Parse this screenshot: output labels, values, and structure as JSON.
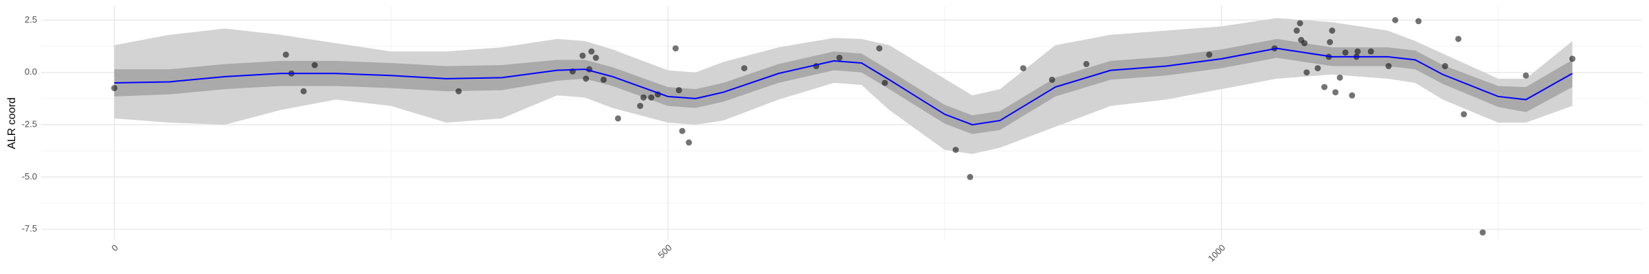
{
  "chart_data": {
    "type": "smooth",
    "y_label": "ALR coord",
    "xlim": [
      -66,
      1380
    ],
    "ylim": [
      -8,
      3.2
    ],
    "xticks": [
      0,
      500,
      1000
    ],
    "yticks": [
      2.5,
      {
        "value": 0,
        "label": "0.0"
      },
      -2.5,
      {
        "value": -5,
        "label": "-5.0"
      },
      -7.5
    ],
    "x_minor_ticks": [
      250,
      750,
      1250
    ],
    "y_minor_ticks": [
      -6.25,
      -3.75,
      -1.25,
      1.25
    ],
    "grid": true,
    "points": {
      "color": "#000000",
      "x": [
        0,
        155,
        160,
        171,
        181,
        311,
        414,
        423,
        426,
        429,
        431,
        435,
        442,
        455,
        475,
        478,
        485,
        491,
        507,
        510,
        513,
        519,
        569,
        634,
        655,
        691,
        696,
        760,
        773,
        821,
        847,
        878,
        989,
        1048,
        1068,
        1071,
        1072,
        1075,
        1077,
        1087,
        1093,
        1097,
        1098,
        1100,
        1103,
        1107,
        1112,
        1118,
        1122,
        1123,
        1135,
        1151,
        1157,
        1178,
        1202,
        1214,
        1219,
        1236,
        1275,
        1317
      ],
      "y": [
        -0.75,
        0.85,
        -0.05,
        -0.9,
        0.35,
        -0.9,
        0.05,
        0.8,
        -0.3,
        0.15,
        1.0,
        0.7,
        -0.35,
        -2.2,
        -1.6,
        -1.2,
        -1.2,
        -1.05,
        1.15,
        -0.85,
        -2.8,
        -3.35,
        0.2,
        0.3,
        0.7,
        1.15,
        -0.5,
        -3.7,
        -5.0,
        0.2,
        -0.35,
        0.4,
        0.85,
        1.15,
        2.0,
        2.35,
        1.55,
        1.4,
        0.0,
        0.2,
        -0.7,
        0.75,
        1.45,
        2.0,
        -0.95,
        -0.25,
        0.95,
        -1.1,
        0.75,
        1.0,
        1.0,
        0.3,
        2.5,
        2.45,
        0.3,
        1.6,
        -2.0,
        -7.65,
        -0.15,
        0.65
      ]
    },
    "smooth": {
      "color": "#0000ff",
      "x": [
        0,
        50,
        100,
        150,
        200,
        250,
        300,
        350,
        400,
        425,
        450,
        500,
        525,
        550,
        600,
        650,
        675,
        700,
        750,
        775,
        800,
        850,
        900,
        950,
        1000,
        1050,
        1100,
        1150,
        1175,
        1200,
        1250,
        1275,
        1317
      ],
      "y": [
        -0.5,
        -0.45,
        -0.2,
        -0.05,
        -0.05,
        -0.15,
        -0.3,
        -0.25,
        0.1,
        0.15,
        -0.2,
        -1.15,
        -1.25,
        -0.95,
        -0.05,
        0.55,
        0.45,
        -0.35,
        -2.0,
        -2.5,
        -2.3,
        -0.7,
        0.1,
        0.3,
        0.65,
        1.15,
        0.75,
        0.75,
        0.6,
        -0.1,
        -1.15,
        -1.3,
        -0.05
      ]
    },
    "bands": [
      {
        "color": "#d3d3d3",
        "upper": [
          1.3,
          1.8,
          2.1,
          1.8,
          1.4,
          1.0,
          1.0,
          1.2,
          1.6,
          1.5,
          1.1,
          0.1,
          0.0,
          0.5,
          1.2,
          1.65,
          1.6,
          1.3,
          -0.3,
          -1.1,
          -0.8,
          1.3,
          1.8,
          2.0,
          2.2,
          2.6,
          2.4,
          2.0,
          1.5,
          0.9,
          -0.3,
          -0.3,
          1.5
        ],
        "lower": [
          -2.2,
          -2.4,
          -2.5,
          -1.8,
          -1.3,
          -1.6,
          -2.4,
          -2.2,
          -1.1,
          -1.2,
          -1.7,
          -2.4,
          -2.5,
          -2.3,
          -1.3,
          -0.5,
          -0.6,
          -1.8,
          -3.7,
          -3.9,
          -3.6,
          -2.6,
          -1.6,
          -1.3,
          -0.8,
          -0.3,
          -0.1,
          -0.3,
          -0.5,
          -1.3,
          -2.4,
          -2.4,
          -1.6
        ]
      },
      {
        "color": "#aaaaaa",
        "upper": [
          0.15,
          0.15,
          0.4,
          0.55,
          0.55,
          0.45,
          0.3,
          0.35,
          0.6,
          0.6,
          0.25,
          -0.7,
          -0.8,
          -0.5,
          0.4,
          1.0,
          0.9,
          0.1,
          -1.55,
          -2.05,
          -1.85,
          -0.25,
          0.55,
          0.75,
          1.1,
          1.6,
          1.2,
          1.2,
          1.05,
          0.35,
          -0.65,
          -0.7,
          0.6
        ],
        "lower": [
          -1.15,
          -1.05,
          -0.8,
          -0.65,
          -0.65,
          -0.75,
          -0.9,
          -0.85,
          -0.4,
          -0.3,
          -0.65,
          -1.6,
          -1.7,
          -1.4,
          -0.5,
          0.1,
          0.0,
          -0.8,
          -2.45,
          -2.95,
          -2.75,
          -1.15,
          -0.35,
          -0.15,
          0.2,
          0.7,
          0.3,
          0.3,
          0.15,
          -0.55,
          -1.65,
          -1.9,
          -0.7
        ]
      }
    ]
  }
}
